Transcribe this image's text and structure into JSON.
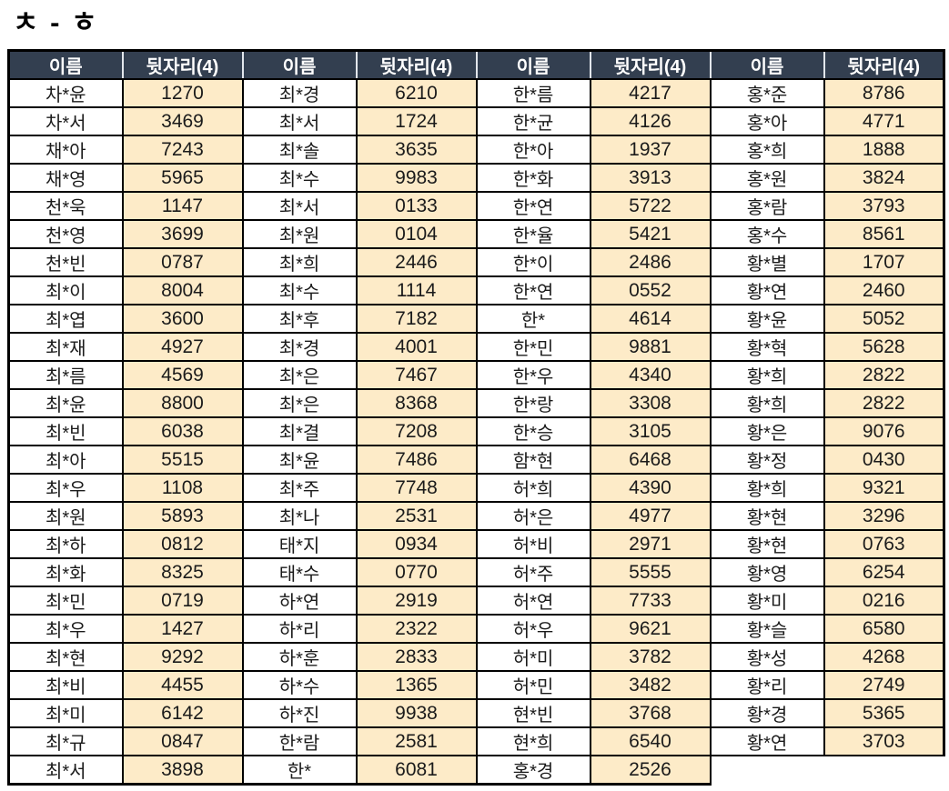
{
  "title": "ㅊ - ㅎ",
  "table": {
    "header": {
      "name_label": "이름",
      "digits_label": "뒷자리(4)"
    },
    "colors": {
      "header_bg": "#333F50",
      "header_text": "#FFFFFF",
      "digits_cell_bg": "#FDEBC8",
      "name_cell_bg": "#FFFFFF",
      "border": "#000000"
    },
    "rows": [
      [
        {
          "name": "차*윤",
          "digits": "1270"
        },
        {
          "name": "최*경",
          "digits": "6210"
        },
        {
          "name": "한*름",
          "digits": "4217"
        },
        {
          "name": "홍*준",
          "digits": "8786"
        }
      ],
      [
        {
          "name": "차*서",
          "digits": "3469"
        },
        {
          "name": "최*서",
          "digits": "1724"
        },
        {
          "name": "한*균",
          "digits": "4126"
        },
        {
          "name": "홍*아",
          "digits": "4771"
        }
      ],
      [
        {
          "name": "채*아",
          "digits": "7243"
        },
        {
          "name": "최*솔",
          "digits": "3635"
        },
        {
          "name": "한*아",
          "digits": "1937"
        },
        {
          "name": "홍*희",
          "digits": "1888"
        }
      ],
      [
        {
          "name": "채*영",
          "digits": "5965"
        },
        {
          "name": "최*수",
          "digits": "9983"
        },
        {
          "name": "한*화",
          "digits": "3913"
        },
        {
          "name": "홍*원",
          "digits": "3824"
        }
      ],
      [
        {
          "name": "천*욱",
          "digits": "1147"
        },
        {
          "name": "최*서",
          "digits": "0133"
        },
        {
          "name": "한*연",
          "digits": "5722"
        },
        {
          "name": "홍*람",
          "digits": "3793"
        }
      ],
      [
        {
          "name": "천*영",
          "digits": "3699"
        },
        {
          "name": "최*원",
          "digits": "0104"
        },
        {
          "name": "한*율",
          "digits": "5421"
        },
        {
          "name": "홍*수",
          "digits": "8561"
        }
      ],
      [
        {
          "name": "천*빈",
          "digits": "0787"
        },
        {
          "name": "최*희",
          "digits": "2446"
        },
        {
          "name": "한*이",
          "digits": "2486"
        },
        {
          "name": "황*별",
          "digits": "1707"
        }
      ],
      [
        {
          "name": "최*이",
          "digits": "8004"
        },
        {
          "name": "최*수",
          "digits": "1114"
        },
        {
          "name": "한*연",
          "digits": "0552"
        },
        {
          "name": "황*연",
          "digits": "2460"
        }
      ],
      [
        {
          "name": "최*엽",
          "digits": "3600"
        },
        {
          "name": "최*후",
          "digits": "7182"
        },
        {
          "name": "한*",
          "digits": "4614"
        },
        {
          "name": "황*윤",
          "digits": "5052"
        }
      ],
      [
        {
          "name": "최*재",
          "digits": "4927"
        },
        {
          "name": "최*경",
          "digits": "4001"
        },
        {
          "name": "한*민",
          "digits": "9881"
        },
        {
          "name": "황*혁",
          "digits": "5628"
        }
      ],
      [
        {
          "name": "최*름",
          "digits": "4569"
        },
        {
          "name": "최*은",
          "digits": "7467"
        },
        {
          "name": "한*우",
          "digits": "4340"
        },
        {
          "name": "황*희",
          "digits": "2822"
        }
      ],
      [
        {
          "name": "최*윤",
          "digits": "8800"
        },
        {
          "name": "최*은",
          "digits": "8368"
        },
        {
          "name": "한*랑",
          "digits": "3308"
        },
        {
          "name": "황*희",
          "digits": "2822"
        }
      ],
      [
        {
          "name": "최*빈",
          "digits": "6038"
        },
        {
          "name": "최*결",
          "digits": "7208"
        },
        {
          "name": "한*승",
          "digits": "3105"
        },
        {
          "name": "황*은",
          "digits": "9076"
        }
      ],
      [
        {
          "name": "최*아",
          "digits": "5515"
        },
        {
          "name": "최*윤",
          "digits": "7486"
        },
        {
          "name": "함*현",
          "digits": "6468"
        },
        {
          "name": "황*정",
          "digits": "0430"
        }
      ],
      [
        {
          "name": "최*우",
          "digits": "1108"
        },
        {
          "name": "최*주",
          "digits": "7748"
        },
        {
          "name": "허*희",
          "digits": "4390"
        },
        {
          "name": "황*희",
          "digits": "9321"
        }
      ],
      [
        {
          "name": "최*원",
          "digits": "5893"
        },
        {
          "name": "최*나",
          "digits": "2531"
        },
        {
          "name": "허*은",
          "digits": "4977"
        },
        {
          "name": "황*현",
          "digits": "3296"
        }
      ],
      [
        {
          "name": "최*하",
          "digits": "0812"
        },
        {
          "name": "태*지",
          "digits": "0934"
        },
        {
          "name": "허*비",
          "digits": "2971"
        },
        {
          "name": "황*현",
          "digits": "0763"
        }
      ],
      [
        {
          "name": "최*화",
          "digits": "8325"
        },
        {
          "name": "태*수",
          "digits": "0770"
        },
        {
          "name": "허*주",
          "digits": "5555"
        },
        {
          "name": "황*영",
          "digits": "6254"
        }
      ],
      [
        {
          "name": "최*민",
          "digits": "0719"
        },
        {
          "name": "하*연",
          "digits": "2919"
        },
        {
          "name": "허*연",
          "digits": "7733"
        },
        {
          "name": "황*미",
          "digits": "0216"
        }
      ],
      [
        {
          "name": "최*우",
          "digits": "1427"
        },
        {
          "name": "하*리",
          "digits": "2322"
        },
        {
          "name": "허*우",
          "digits": "9621"
        },
        {
          "name": "황*슬",
          "digits": "6580"
        }
      ],
      [
        {
          "name": "최*현",
          "digits": "9292"
        },
        {
          "name": "하*훈",
          "digits": "2833"
        },
        {
          "name": "허*미",
          "digits": "3782"
        },
        {
          "name": "황*성",
          "digits": "4268"
        }
      ],
      [
        {
          "name": "최*비",
          "digits": "4455"
        },
        {
          "name": "하*수",
          "digits": "1365"
        },
        {
          "name": "허*민",
          "digits": "3482"
        },
        {
          "name": "황*리",
          "digits": "2749"
        }
      ],
      [
        {
          "name": "최*미",
          "digits": "6142"
        },
        {
          "name": "하*진",
          "digits": "9938"
        },
        {
          "name": "현*빈",
          "digits": "3768"
        },
        {
          "name": "황*경",
          "digits": "5365"
        }
      ],
      [
        {
          "name": "최*규",
          "digits": "0847"
        },
        {
          "name": "한*람",
          "digits": "2581"
        },
        {
          "name": "현*희",
          "digits": "6540"
        },
        {
          "name": "황*연",
          "digits": "3703"
        }
      ],
      [
        {
          "name": "최*서",
          "digits": "3898"
        },
        {
          "name": "한*",
          "digits": "6081"
        },
        {
          "name": "홍*경",
          "digits": "2526"
        },
        null
      ]
    ]
  }
}
